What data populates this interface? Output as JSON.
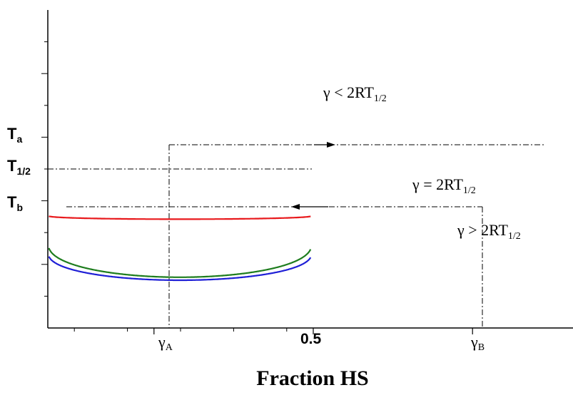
{
  "chart_data": {
    "type": "line",
    "title": "",
    "xlabel": "Fraction HS",
    "ylabel": "",
    "xlim": [
      0,
      1
    ],
    "x_tick_labels": [
      {
        "x": 0.2,
        "text": "γ",
        "sub": "A"
      },
      {
        "x": 0.5,
        "text": "0.5",
        "sub": ""
      },
      {
        "x": 0.8,
        "text": "γ",
        "sub": "B"
      }
    ],
    "y_tick_labels": [
      {
        "level": "a",
        "text": "T",
        "sub": "a"
      },
      {
        "level": "half",
        "text": "T",
        "sub": "1/2"
      },
      {
        "level": "b",
        "text": "T",
        "sub": "b"
      }
    ],
    "series": [
      {
        "label_main": "γ < 2RT",
        "label_sub": "1/2",
        "color": "#e8191c",
        "gamma_ratio": 0.2
      },
      {
        "label_main": "γ = 2RT",
        "label_sub": "1/2",
        "color": "#1f1fd6",
        "gamma_ratio": 1.0
      },
      {
        "label_main": "γ > 2RT",
        "label_sub": "1/2",
        "color": "#1e7d1e",
        "gamma_ratio": 1.45
      }
    ],
    "annotations": [
      {
        "type": "arrow",
        "direction": "right",
        "at_level": "a"
      },
      {
        "type": "arrow",
        "direction": "left",
        "at_level": "b"
      }
    ],
    "grid": false,
    "legend": "none"
  }
}
